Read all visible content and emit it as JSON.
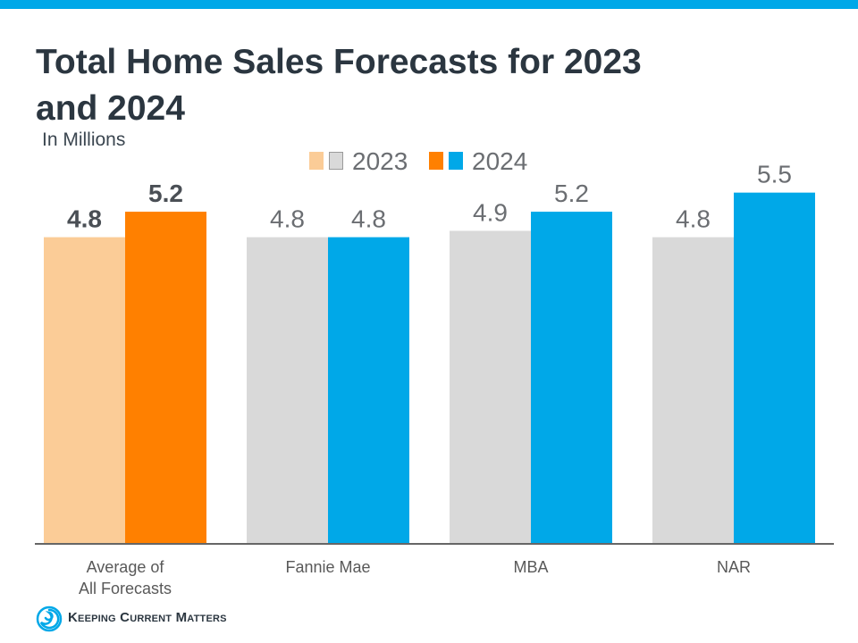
{
  "brand": {
    "name": "Keeping Current Matters",
    "accent_color": "#00a8e8"
  },
  "chart_data": {
    "type": "bar",
    "title": "Total Home Sales Forecasts for 2023 and 2024",
    "subtitle": "In Millions",
    "categories": [
      "Average of\nAll Forecasts",
      "Fannie Mae",
      "MBA",
      "NAR"
    ],
    "series": [
      {
        "name": "2023",
        "values": [
          4.8,
          4.8,
          4.9,
          4.8
        ],
        "labels": [
          "4.8",
          "4.8",
          "4.9",
          "4.8"
        ],
        "color": "#d9d9d9",
        "highlight_color": "#fbcc97"
      },
      {
        "name": "2024",
        "values": [
          5.2,
          4.8,
          5.2,
          5.5
        ],
        "labels": [
          "5.2",
          "4.8",
          "5.2",
          "5.5"
        ],
        "color": "#00a8e8",
        "highlight_color": "#ff8000"
      }
    ],
    "highlight_category_index": 0,
    "ylim": [
      0,
      6
    ],
    "grid": false,
    "legend_position": "top-center",
    "label_text_color": "#6b6e72",
    "highlight_label_text_color": "#4a4f55",
    "axis_color": "#333333"
  }
}
